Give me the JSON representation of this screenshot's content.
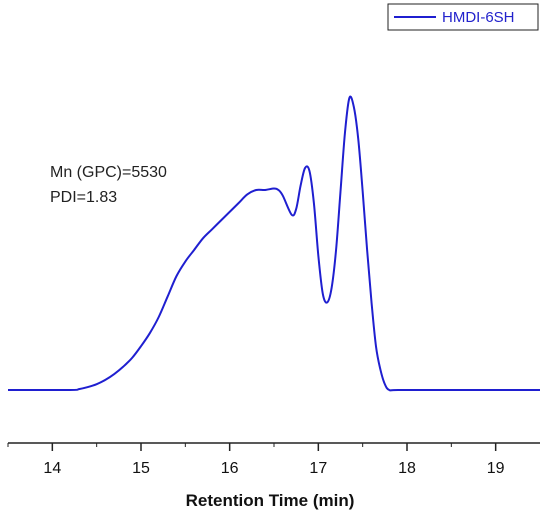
{
  "colors": {
    "series": "#1f1fd0",
    "axis": "#222222",
    "legend_border": "#222222"
  },
  "chart_data": {
    "type": "line",
    "title": "",
    "xlabel": "Retention Time (min)",
    "ylabel": "",
    "xlim": [
      13.5,
      19.5
    ],
    "ylim": [
      0,
      1.0
    ],
    "x_ticks": [
      14,
      15,
      16,
      17,
      18,
      19
    ],
    "x_tick_labels": [
      "14",
      "15",
      "16",
      "17",
      "18",
      "19"
    ],
    "y_axis_visible": false,
    "grid": false,
    "legend": {
      "placement": "top-right",
      "entries": [
        "HMDI-6SH"
      ]
    },
    "annotations": [
      "Mn (GPC)=5530",
      "PDI=1.83"
    ],
    "series": [
      {
        "name": "HMDI-6SH",
        "x": [
          13.5,
          14.2,
          14.3,
          14.4,
          14.5,
          14.6,
          14.7,
          14.8,
          14.9,
          15.0,
          15.1,
          15.2,
          15.3,
          15.4,
          15.5,
          15.6,
          15.7,
          15.8,
          15.9,
          16.0,
          16.1,
          16.2,
          16.3,
          16.4,
          16.5,
          16.55,
          16.6,
          16.7,
          16.75,
          16.8,
          16.85,
          16.9,
          16.95,
          17.0,
          17.05,
          17.1,
          17.15,
          17.2,
          17.25,
          17.3,
          17.35,
          17.4,
          17.45,
          17.5,
          17.55,
          17.6,
          17.65,
          17.7,
          17.75,
          17.8,
          17.9,
          18.5,
          19.5
        ],
        "y": [
          0.0,
          0.0,
          0.003,
          0.01,
          0.02,
          0.035,
          0.055,
          0.08,
          0.11,
          0.15,
          0.195,
          0.25,
          0.32,
          0.39,
          0.44,
          0.48,
          0.52,
          0.55,
          0.58,
          0.61,
          0.64,
          0.67,
          0.685,
          0.685,
          0.69,
          0.685,
          0.665,
          0.6,
          0.62,
          0.7,
          0.76,
          0.75,
          0.64,
          0.46,
          0.33,
          0.3,
          0.35,
          0.48,
          0.68,
          0.88,
          1.0,
          0.97,
          0.86,
          0.68,
          0.48,
          0.3,
          0.15,
          0.07,
          0.02,
          0.0,
          0.0,
          0.0,
          0.0
        ]
      }
    ]
  }
}
